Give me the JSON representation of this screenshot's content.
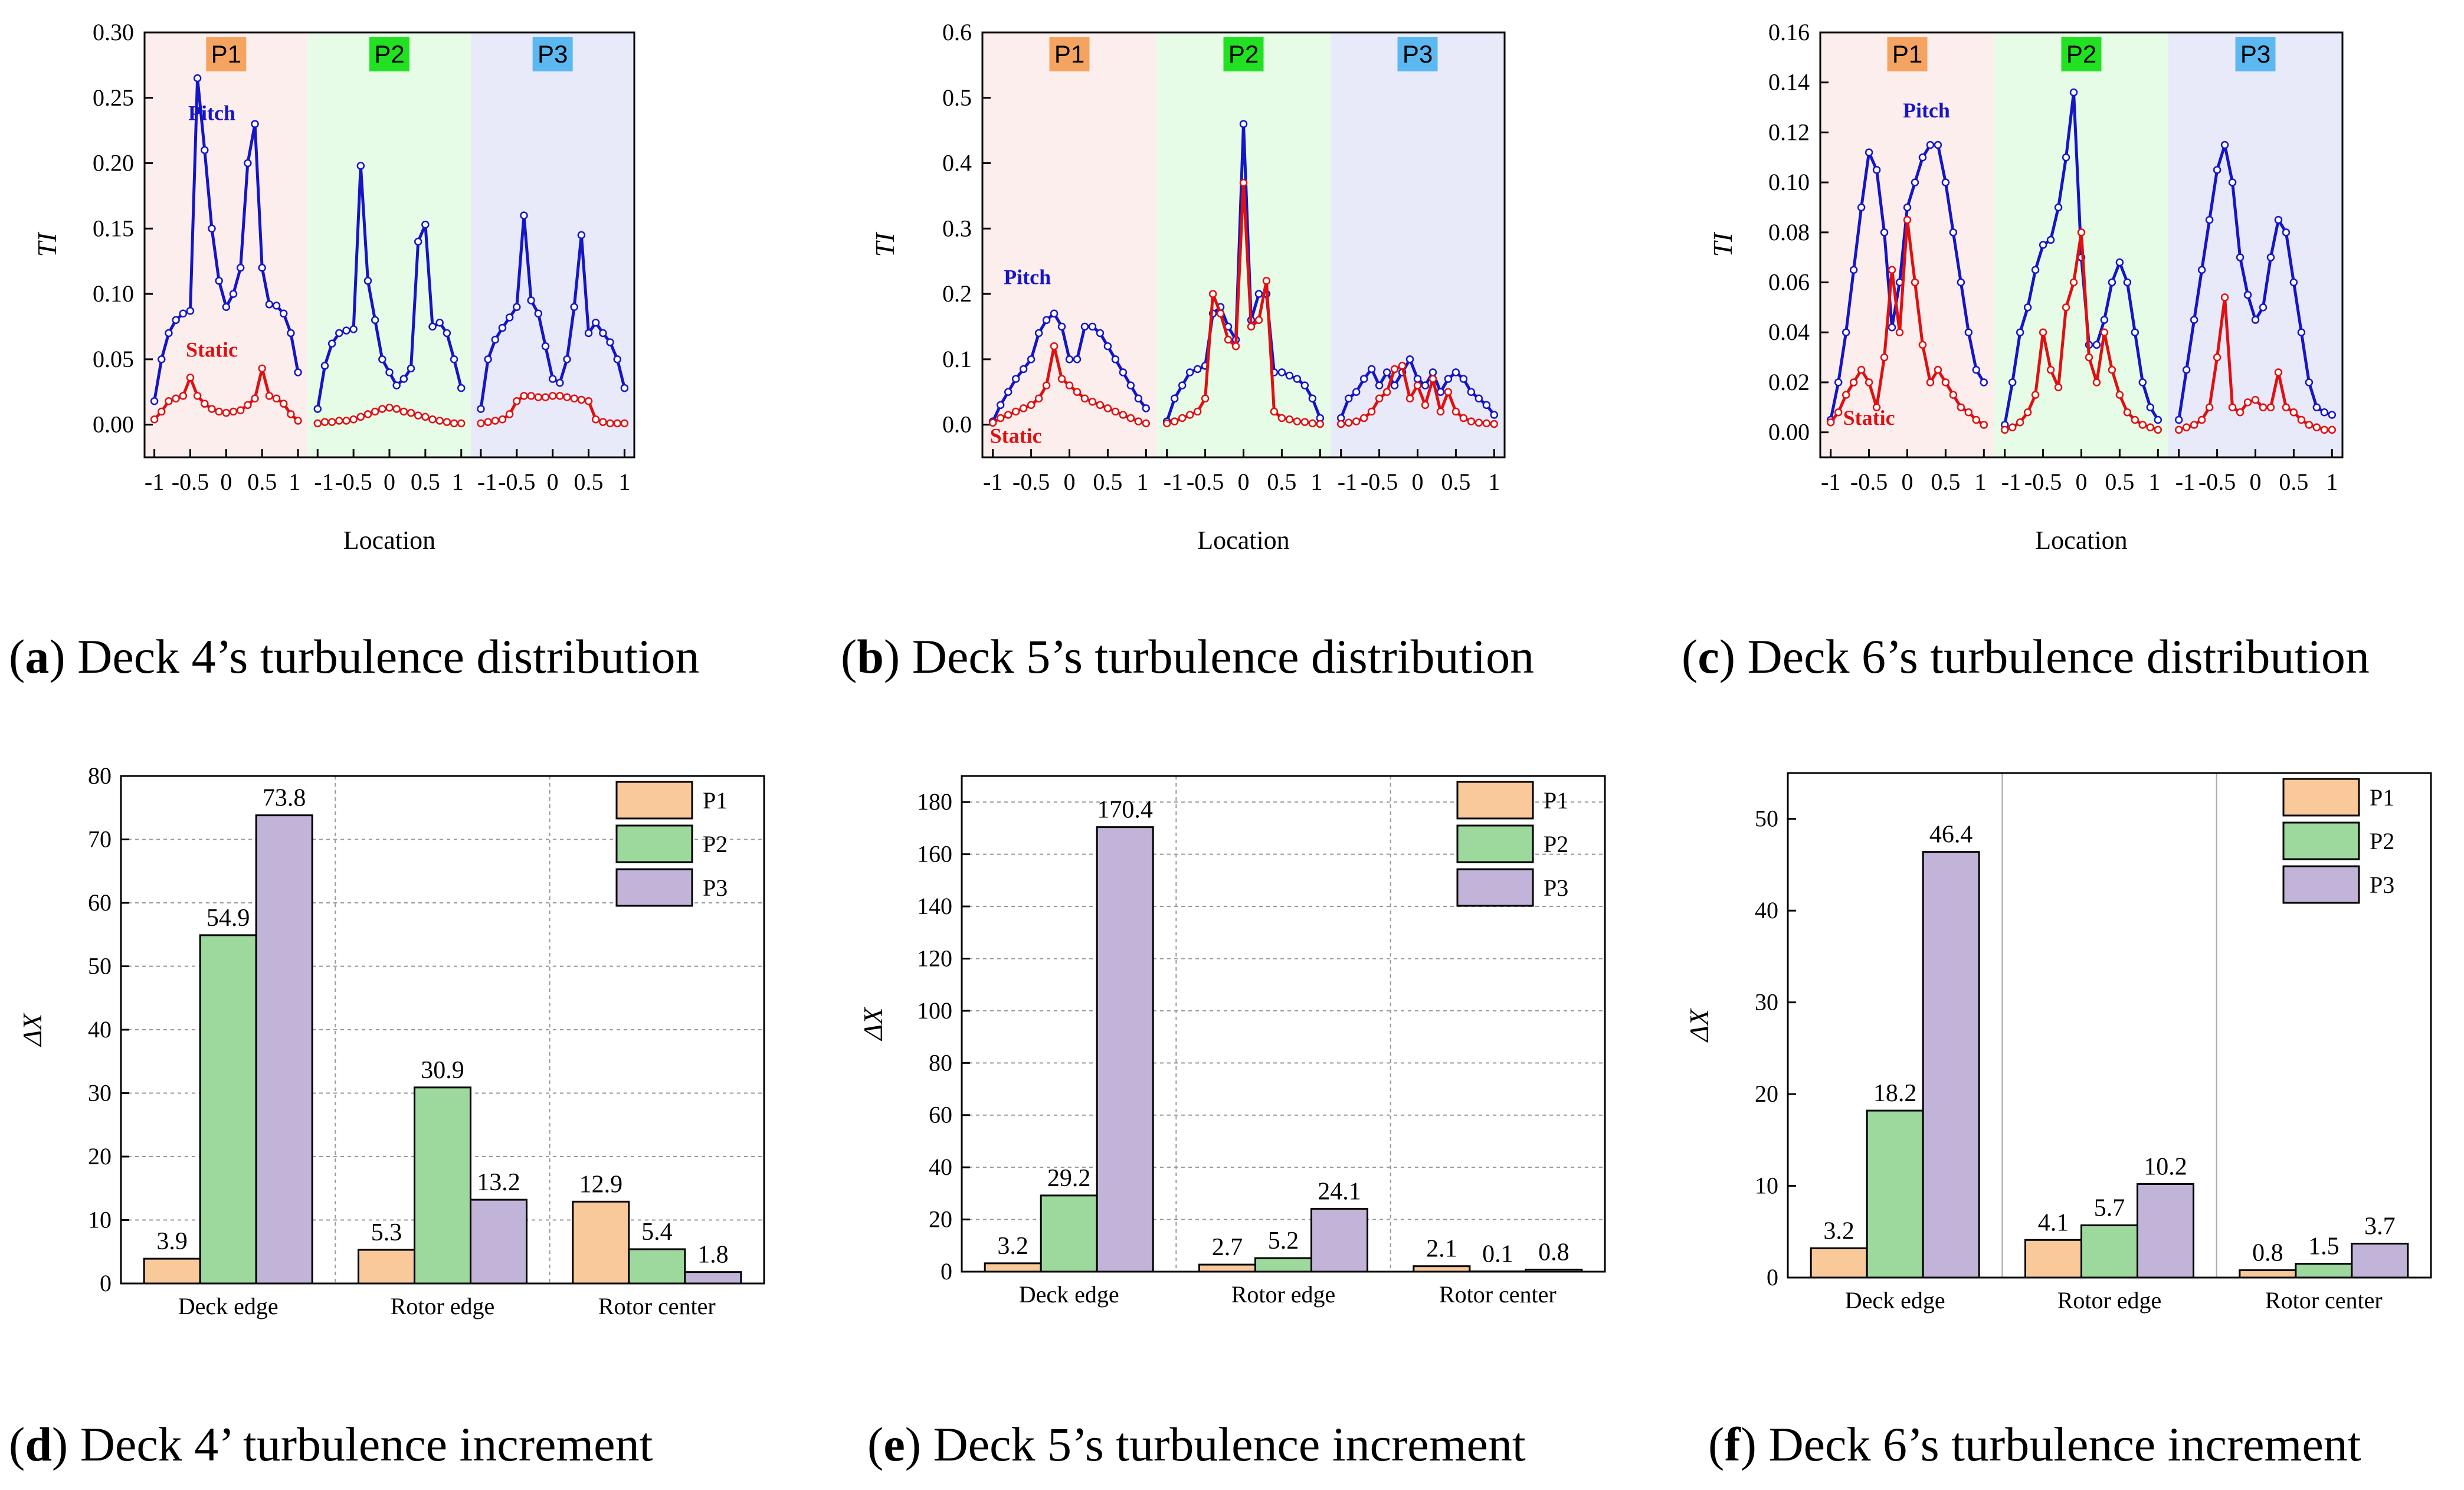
{
  "colors": {
    "pitch": "#1515c8",
    "static": "#e01010",
    "p1_band": "#fdeeee",
    "p2_band": "#e7fce7",
    "p3_band": "#e8e9f9",
    "p1_label": "#f4a460",
    "p2_label": "#22e022",
    "p3_label": "#5cb8f0",
    "bar_p1": "#f9c99a",
    "bar_p2": "#9dd89d",
    "bar_p3": "#c2b4d8"
  },
  "chart_data": [
    {
      "id": "a",
      "type": "line",
      "caption_letter": "a",
      "caption_text": " Deck 4’s turbulence distribution",
      "xlabel": "Location",
      "ylabel": "TI",
      "ylim": [
        -0.025,
        0.3
      ],
      "yticks": [
        "0.00",
        "0.05",
        "0.10",
        "0.15",
        "0.20",
        "0.25",
        "0.30"
      ],
      "regions": [
        "P1",
        "P2",
        "P3"
      ],
      "region_ticks": [
        "-1",
        "-0.5",
        "0",
        "0.5",
        "1"
      ],
      "annotations": [
        {
          "text": "Pitch",
          "series": "pitch",
          "x": -0.2,
          "y": 0.233
        },
        {
          "text": "Static",
          "series": "static",
          "x": -0.2,
          "y": 0.052
        }
      ],
      "series": [
        {
          "name": "Pitch",
          "key": "pitch",
          "regions": [
            [
              0.018,
              0.05,
              0.07,
              0.08,
              0.085,
              0.087,
              0.265,
              0.21,
              0.15,
              0.11,
              0.09,
              0.1,
              0.12,
              0.2,
              0.23,
              0.12,
              0.092,
              0.091,
              0.085,
              0.07,
              0.04
            ],
            [
              0.012,
              0.045,
              0.062,
              0.07,
              0.072,
              0.073,
              0.198,
              0.11,
              0.08,
              0.05,
              0.04,
              0.03,
              0.035,
              0.043,
              0.14,
              0.153,
              0.075,
              0.078,
              0.07,
              0.05,
              0.028
            ],
            [
              0.012,
              0.05,
              0.065,
              0.074,
              0.082,
              0.09,
              0.16,
              0.095,
              0.085,
              0.06,
              0.035,
              0.032,
              0.05,
              0.09,
              0.145,
              0.07,
              0.078,
              0.07,
              0.063,
              0.05,
              0.028
            ]
          ]
        },
        {
          "name": "Static",
          "key": "static",
          "regions": [
            [
              0.004,
              0.01,
              0.018,
              0.02,
              0.022,
              0.036,
              0.022,
              0.016,
              0.012,
              0.01,
              0.009,
              0.01,
              0.011,
              0.015,
              0.02,
              0.043,
              0.022,
              0.02,
              0.016,
              0.008,
              0.003
            ],
            [
              0.001,
              0.002,
              0.002,
              0.003,
              0.003,
              0.004,
              0.006,
              0.008,
              0.01,
              0.012,
              0.013,
              0.012,
              0.01,
              0.009,
              0.007,
              0.006,
              0.004,
              0.003,
              0.002,
              0.001,
              0.001
            ],
            [
              0.001,
              0.002,
              0.003,
              0.004,
              0.008,
              0.018,
              0.022,
              0.022,
              0.021,
              0.021,
              0.022,
              0.022,
              0.021,
              0.02,
              0.019,
              0.018,
              0.004,
              0.002,
              0.001,
              0.001,
              0.001
            ]
          ]
        }
      ]
    },
    {
      "id": "b",
      "type": "line",
      "caption_letter": "b",
      "caption_text": " Deck 5’s turbulence distribution",
      "xlabel": "Location",
      "ylabel": "TI",
      "ylim": [
        -0.05,
        0.6
      ],
      "yticks": [
        "0.0",
        "0.1",
        "0.2",
        "0.3",
        "0.4",
        "0.5",
        "0.6"
      ],
      "regions": [
        "P1",
        "P2",
        "P3"
      ],
      "region_ticks": [
        "-1",
        "-0.5",
        "0",
        "0.5",
        "1"
      ],
      "annotations": [
        {
          "text": "Pitch",
          "series": "pitch",
          "x": -0.55,
          "y": 0.215
        },
        {
          "text": "Static",
          "series": "static",
          "x": -0.7,
          "y": -0.028
        }
      ],
      "series": [
        {
          "name": "Pitch",
          "key": "pitch",
          "regions": [
            [
              0.005,
              0.03,
              0.05,
              0.07,
              0.085,
              0.1,
              0.14,
              0.16,
              0.17,
              0.15,
              0.1,
              0.1,
              0.15,
              0.15,
              0.14,
              0.12,
              0.1,
              0.08,
              0.06,
              0.04,
              0.025
            ],
            [
              0.005,
              0.04,
              0.06,
              0.08,
              0.085,
              0.09,
              0.17,
              0.18,
              0.15,
              0.13,
              0.46,
              0.16,
              0.2,
              0.2,
              0.08,
              0.08,
              0.075,
              0.07,
              0.06,
              0.04,
              0.01
            ],
            [
              0.01,
              0.04,
              0.05,
              0.07,
              0.085,
              0.06,
              0.08,
              0.06,
              0.08,
              0.1,
              0.07,
              0.06,
              0.08,
              0.05,
              0.07,
              0.08,
              0.07,
              0.05,
              0.04,
              0.03,
              0.015
            ]
          ]
        },
        {
          "name": "Static",
          "key": "static",
          "regions": [
            [
              0.003,
              0.01,
              0.015,
              0.02,
              0.025,
              0.03,
              0.04,
              0.06,
              0.12,
              0.07,
              0.06,
              0.05,
              0.04,
              0.035,
              0.03,
              0.025,
              0.02,
              0.015,
              0.01,
              0.005,
              0.002
            ],
            [
              0.002,
              0.005,
              0.01,
              0.015,
              0.02,
              0.04,
              0.2,
              0.17,
              0.13,
              0.12,
              0.37,
              0.15,
              0.16,
              0.22,
              0.02,
              0.01,
              0.008,
              0.005,
              0.004,
              0.002,
              0.001
            ],
            [
              0.001,
              0.003,
              0.005,
              0.01,
              0.02,
              0.04,
              0.05,
              0.085,
              0.09,
              0.04,
              0.06,
              0.03,
              0.07,
              0.02,
              0.05,
              0.02,
              0.01,
              0.005,
              0.003,
              0.002,
              0.001
            ]
          ]
        }
      ]
    },
    {
      "id": "c",
      "type": "line",
      "caption_letter": "c",
      "caption_text": " Deck 6’s turbulence distribution",
      "xlabel": "Location",
      "ylabel": "TI",
      "ylim": [
        -0.01,
        0.16
      ],
      "yticks": [
        "0.00",
        "0.02",
        "0.04",
        "0.06",
        "0.08",
        "0.10",
        "0.12",
        "0.14",
        "0.16"
      ],
      "regions": [
        "P1",
        "P2",
        "P3"
      ],
      "region_ticks": [
        "-1",
        "-0.5",
        "0",
        "0.5",
        "1"
      ],
      "annotations": [
        {
          "text": "Pitch",
          "series": "pitch",
          "x": 0.25,
          "y": 0.126
        },
        {
          "text": "Static",
          "series": "static",
          "x": -0.5,
          "y": 0.003
        }
      ],
      "series": [
        {
          "name": "Pitch",
          "key": "pitch",
          "regions": [
            [
              0.005,
              0.02,
              0.04,
              0.065,
              0.09,
              0.112,
              0.105,
              0.08,
              0.042,
              0.06,
              0.09,
              0.1,
              0.11,
              0.115,
              0.115,
              0.1,
              0.08,
              0.06,
              0.04,
              0.025,
              0.02
            ],
            [
              0.003,
              0.02,
              0.04,
              0.05,
              0.065,
              0.075,
              0.077,
              0.09,
              0.11,
              0.136,
              0.07,
              0.035,
              0.035,
              0.045,
              0.06,
              0.068,
              0.06,
              0.04,
              0.02,
              0.01,
              0.005
            ],
            [
              0.005,
              0.025,
              0.045,
              0.065,
              0.085,
              0.105,
              0.115,
              0.1,
              0.07,
              0.055,
              0.045,
              0.05,
              0.07,
              0.085,
              0.08,
              0.06,
              0.04,
              0.02,
              0.01,
              0.008,
              0.007
            ]
          ]
        },
        {
          "name": "Static",
          "key": "static",
          "regions": [
            [
              0.004,
              0.008,
              0.015,
              0.02,
              0.025,
              0.02,
              0.01,
              0.03,
              0.065,
              0.04,
              0.085,
              0.06,
              0.035,
              0.02,
              0.025,
              0.02,
              0.015,
              0.01,
              0.008,
              0.005,
              0.003
            ],
            [
              0.001,
              0.002,
              0.004,
              0.008,
              0.015,
              0.04,
              0.025,
              0.018,
              0.05,
              0.06,
              0.08,
              0.03,
              0.02,
              0.04,
              0.025,
              0.015,
              0.008,
              0.005,
              0.003,
              0.002,
              0.001
            ],
            [
              0.001,
              0.002,
              0.003,
              0.005,
              0.01,
              0.03,
              0.054,
              0.01,
              0.008,
              0.012,
              0.013,
              0.01,
              0.01,
              0.024,
              0.01,
              0.008,
              0.005,
              0.003,
              0.002,
              0.001,
              0.001
            ]
          ]
        }
      ]
    },
    {
      "id": "d",
      "type": "bar",
      "caption_letter": "d",
      "caption_text": " Deck 4’ turbulence increment",
      "ylabel": "ΔX",
      "ylim": [
        0,
        80
      ],
      "yticks": [
        "0",
        "10",
        "20",
        "30",
        "40",
        "50",
        "60",
        "70",
        "80"
      ],
      "grid": "dashed",
      "categories": [
        "Deck edge",
        "Rotor edge",
        "Rotor center"
      ],
      "series": [
        {
          "name": "P1",
          "values": [
            3.9,
            5.3,
            12.9
          ],
          "labels": [
            "3.9",
            "5.3",
            "12.9"
          ]
        },
        {
          "name": "P2",
          "values": [
            54.9,
            30.9,
            5.4
          ],
          "labels": [
            "54.9",
            "30.9",
            "5.4"
          ]
        },
        {
          "name": "P3",
          "values": [
            73.8,
            13.2,
            1.8
          ],
          "labels": [
            "73.8",
            "13.2",
            "1.8"
          ]
        }
      ],
      "legend": "top-right"
    },
    {
      "id": "e",
      "type": "bar",
      "caption_letter": "e",
      "caption_text": " Deck 5’s turbulence increment",
      "ylabel": "ΔX",
      "ylim": [
        0,
        190
      ],
      "yticks": [
        "0",
        "20",
        "40",
        "60",
        "80",
        "100",
        "120",
        "140",
        "160",
        "180"
      ],
      "grid": "dashed",
      "categories": [
        "Deck edge",
        "Rotor edge",
        "Rotor center"
      ],
      "series": [
        {
          "name": "P1",
          "values": [
            3.2,
            2.7,
            2.1
          ],
          "labels": [
            "3.2",
            "2.7",
            "2.1"
          ]
        },
        {
          "name": "P2",
          "values": [
            29.2,
            5.2,
            0.1
          ],
          "labels": [
            "29.2",
            "5.2",
            "0.1"
          ]
        },
        {
          "name": "P3",
          "values": [
            170.4,
            24.1,
            0.8
          ],
          "labels": [
            "170.4",
            "24.1",
            "0.8"
          ]
        }
      ],
      "legend": "top-right"
    },
    {
      "id": "f",
      "type": "bar",
      "caption_letter": "f",
      "caption_text": " Deck 6’s turbulence increment",
      "ylabel": "ΔX",
      "ylim": [
        0,
        55
      ],
      "yticks": [
        "0",
        "10",
        "20",
        "30",
        "40",
        "50"
      ],
      "grid": "solid",
      "categories": [
        "Deck edge",
        "Rotor edge",
        "Rotor center"
      ],
      "series": [
        {
          "name": "P1",
          "values": [
            3.2,
            4.1,
            0.8
          ],
          "labels": [
            "3.2",
            "4.1",
            "0.8"
          ]
        },
        {
          "name": "P2",
          "values": [
            18.2,
            5.7,
            1.5
          ],
          "labels": [
            "18.2",
            "5.7",
            "1.5"
          ]
        },
        {
          "name": "P3",
          "values": [
            46.4,
            10.2,
            3.7
          ],
          "labels": [
            "46.4",
            "10.2",
            "3.7"
          ]
        }
      ],
      "legend": "top-right"
    }
  ]
}
